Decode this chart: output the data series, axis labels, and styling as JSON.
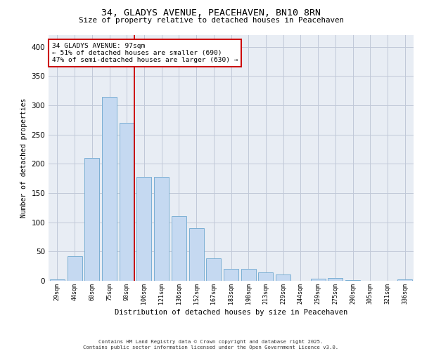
{
  "title1": "34, GLADYS AVENUE, PEACEHAVEN, BN10 8RN",
  "title2": "Size of property relative to detached houses in Peacehaven",
  "xlabel": "Distribution of detached houses by size in Peacehaven",
  "ylabel": "Number of detached properties",
  "categories": [
    "29sqm",
    "44sqm",
    "60sqm",
    "75sqm",
    "90sqm",
    "106sqm",
    "121sqm",
    "136sqm",
    "152sqm",
    "167sqm",
    "183sqm",
    "198sqm",
    "213sqm",
    "229sqm",
    "244sqm",
    "259sqm",
    "275sqm",
    "290sqm",
    "305sqm",
    "321sqm",
    "336sqm"
  ],
  "values": [
    3,
    42,
    210,
    315,
    270,
    178,
    178,
    110,
    90,
    38,
    20,
    21,
    14,
    11,
    0,
    4,
    5,
    1,
    0,
    0,
    3
  ],
  "bar_color": "#c5d9f1",
  "bar_edge_color": "#7bafd4",
  "grid_color": "#c0c8d8",
  "background_color": "#e8edf4",
  "vline_color": "#cc0000",
  "vline_x": 4.45,
  "annotation_title": "34 GLADYS AVENUE: 97sqm",
  "annotation_line1": "← 51% of detached houses are smaller (690)",
  "annotation_line2": "47% of semi-detached houses are larger (630) →",
  "annotation_box_color": "#cc0000",
  "footer1": "Contains HM Land Registry data © Crown copyright and database right 2025.",
  "footer2": "Contains public sector information licensed under the Open Government Licence v3.0.",
  "ylim": [
    0,
    420
  ],
  "yticks": [
    0,
    50,
    100,
    150,
    200,
    250,
    300,
    350,
    400
  ]
}
